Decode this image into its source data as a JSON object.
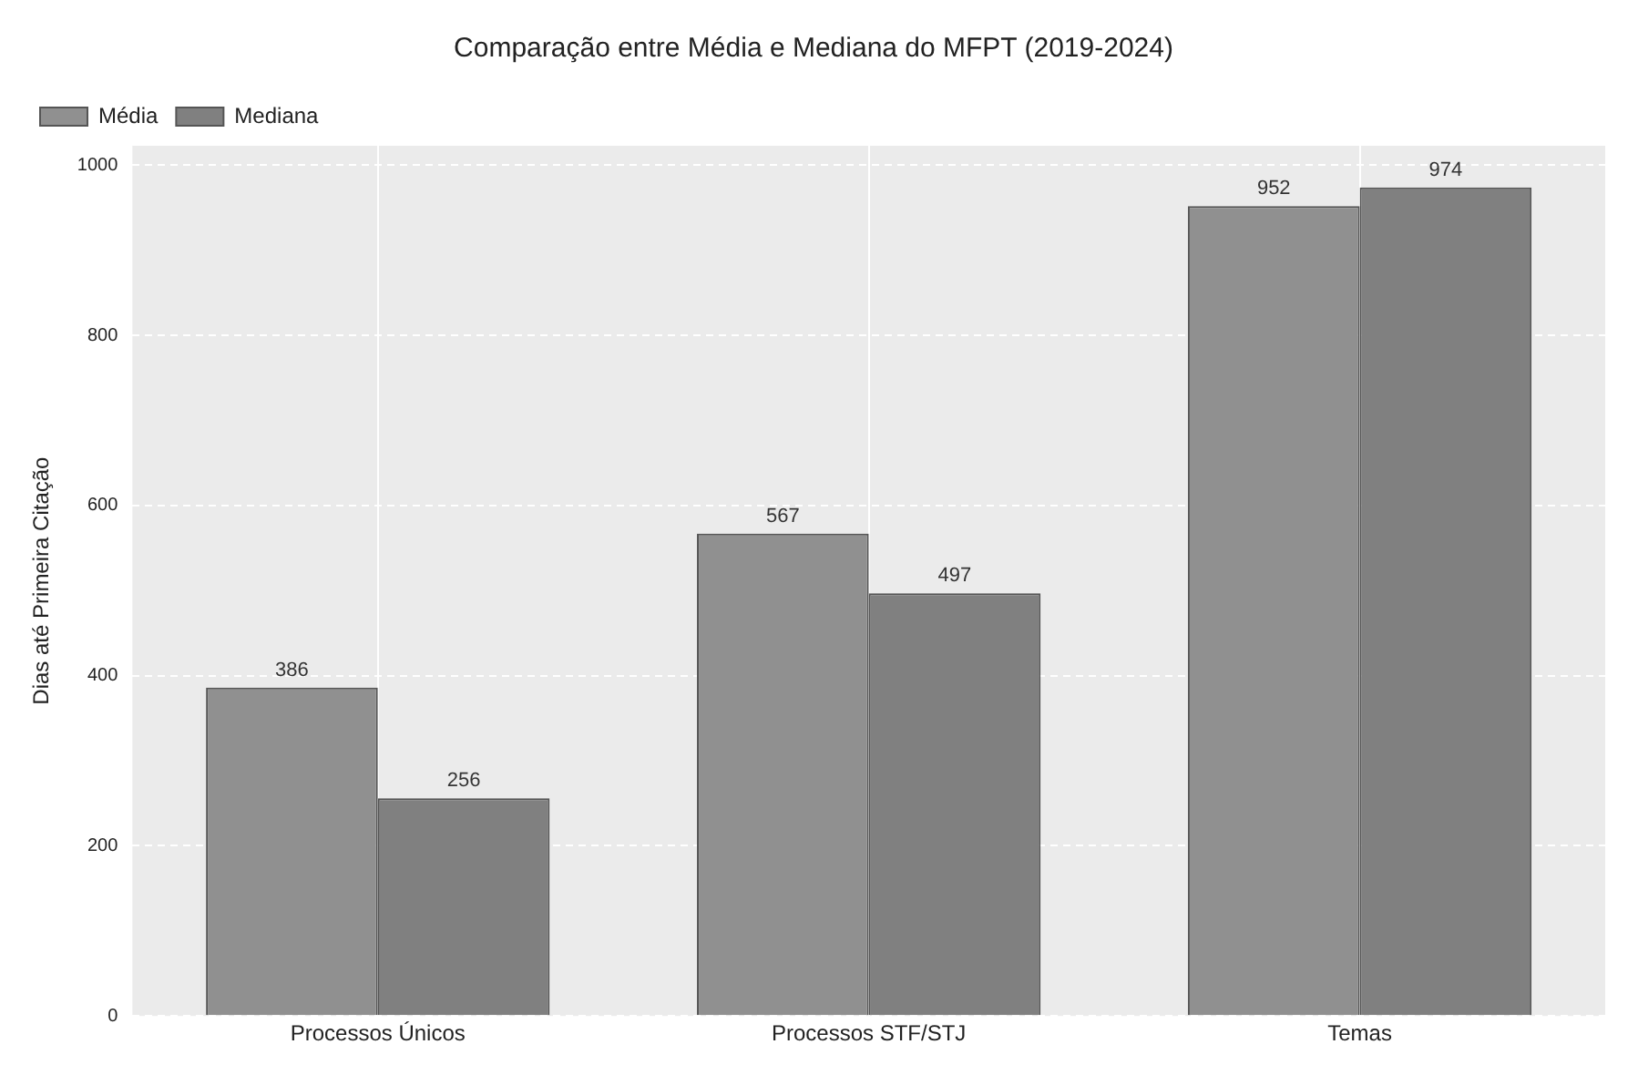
{
  "chart_data": {
    "type": "bar",
    "title": "Comparação entre Média e Mediana do MFPT (2019-2024)",
    "ylabel": "Dias até Primeira Citação",
    "categories": [
      "Processos Únicos",
      "Processos STF/STJ",
      "Temas"
    ],
    "series": [
      {
        "name": "Média",
        "color": "#909090",
        "values": [
          386,
          567,
          952
        ]
      },
      {
        "name": "Mediana",
        "color": "#808080",
        "values": [
          256,
          497,
          974
        ]
      }
    ],
    "ylim": [
      0,
      1023
    ],
    "yticks": [
      0,
      200,
      400,
      600,
      800,
      1000
    ],
    "grid": true,
    "legend": "top left",
    "data_labels": true
  }
}
